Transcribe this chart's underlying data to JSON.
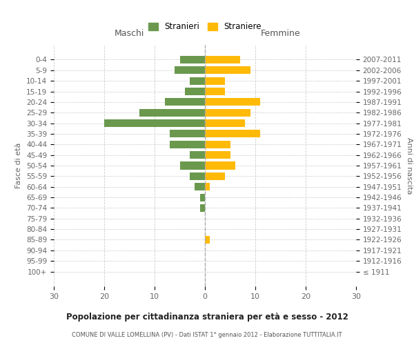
{
  "age_groups": [
    "0-4",
    "5-9",
    "10-14",
    "15-19",
    "20-24",
    "25-29",
    "30-34",
    "35-39",
    "40-44",
    "45-49",
    "50-54",
    "55-59",
    "60-64",
    "65-69",
    "70-74",
    "75-79",
    "80-84",
    "85-89",
    "90-94",
    "95-99",
    "100+"
  ],
  "birth_years": [
    "2007-2011",
    "2002-2006",
    "1997-2001",
    "1992-1996",
    "1987-1991",
    "1982-1986",
    "1977-1981",
    "1972-1976",
    "1967-1971",
    "1962-1966",
    "1957-1961",
    "1952-1956",
    "1947-1951",
    "1942-1946",
    "1937-1941",
    "1932-1936",
    "1927-1931",
    "1922-1926",
    "1917-1921",
    "1912-1916",
    "≤ 1911"
  ],
  "maschi": [
    5,
    6,
    3,
    4,
    8,
    13,
    20,
    7,
    7,
    3,
    5,
    3,
    2,
    1,
    1,
    0,
    0,
    0,
    0,
    0,
    0
  ],
  "femmine": [
    7,
    9,
    4,
    4,
    11,
    9,
    8,
    11,
    5,
    5,
    6,
    4,
    1,
    0,
    0,
    0,
    0,
    1,
    0,
    0,
    0
  ],
  "maschi_color": "#6a994e",
  "femmine_color": "#ffba08",
  "title": "Popolazione per cittadinanza straniera per età e sesso - 2012",
  "subtitle": "COMUNE DI VALLE LOMELLINA (PV) - Dati ISTAT 1° gennaio 2012 - Elaborazione TUTTITALIA.IT",
  "ylabel_left": "Fasce di età",
  "ylabel_right": "Anni di nascita",
  "xlabel_maschi": "Maschi",
  "xlabel_femmine": "Femmine",
  "legend_maschi": "Stranieri",
  "legend_femmine": "Straniere",
  "xlim": 30,
  "background_color": "#ffffff",
  "grid_color": "#cccccc",
  "bar_height": 0.72
}
